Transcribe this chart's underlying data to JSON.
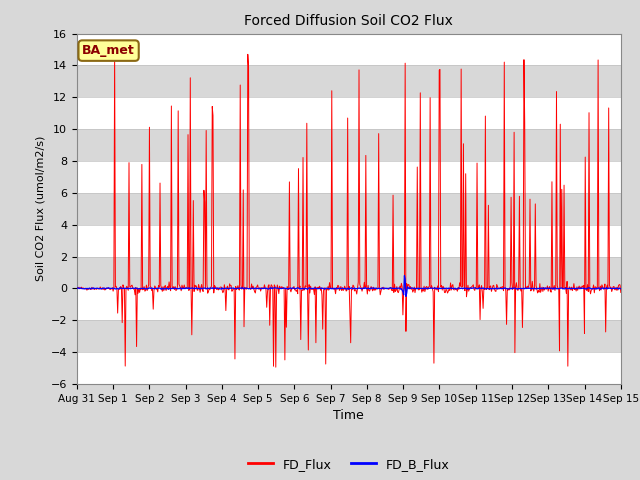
{
  "title": "Forced Diffusion Soil CO2 Flux",
  "xlabel": "Time",
  "ylabel": "Soil CO2 Flux (umol/m2/s)",
  "ylim": [
    -6,
    16
  ],
  "yticks": [
    -6,
    -4,
    -2,
    0,
    2,
    4,
    6,
    8,
    10,
    12,
    14,
    16
  ],
  "xtick_labels": [
    "Aug 31",
    "Sep 1",
    "Sep 2",
    "Sep 3",
    "Sep 4",
    "Sep 5",
    "Sep 6",
    "Sep 7",
    "Sep 8",
    "Sep 9",
    "Sep 10",
    "Sep 11",
    "Sep 12",
    "Sep 13",
    "Sep 14",
    "Sep 15"
  ],
  "n_days": 15,
  "fd_flux_color": "#FF0000",
  "fd_b_flux_color": "#0000FF",
  "fig_bg_color": "#D8D8D8",
  "axes_bg_color": "#E8E8E8",
  "band_color_light": "#FFFFFF",
  "band_color_dark": "#D8D8D8",
  "grid_line_color": "#C0C0C0",
  "legend_label_fd": "FD_Flux",
  "legend_label_fd_b": "FD_B_Flux",
  "annotation_text": "BA_met",
  "annotation_bg": "#FFFF99",
  "annotation_border": "#8B6914",
  "seed": 42
}
